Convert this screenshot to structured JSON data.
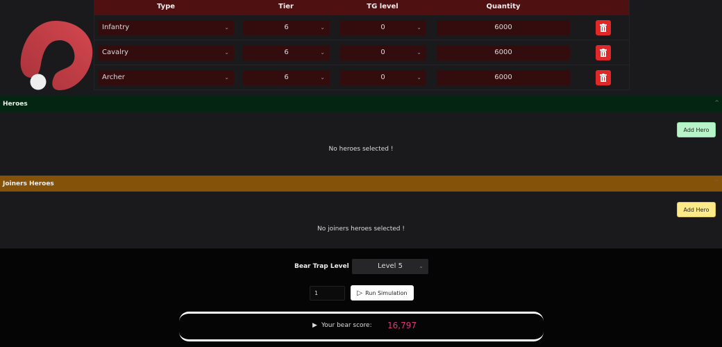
{
  "troops": {
    "headers": [
      "Type",
      "Tier",
      "TG level",
      "Quantity"
    ],
    "rows": [
      {
        "type": "Infantry",
        "tier": "6",
        "tg": "0",
        "quantity": "6000"
      },
      {
        "type": "Cavalry",
        "tier": "6",
        "tg": "0",
        "quantity": "6000"
      },
      {
        "type": "Archer",
        "tier": "6",
        "tg": "0",
        "quantity": "6000"
      }
    ]
  },
  "heroes": {
    "title": "Heroes",
    "add_label": "Add Hero",
    "empty": "No heroes selected !"
  },
  "joiners": {
    "title": "Joiners Heroes",
    "add_label": "Add Hero",
    "empty": "No joiners heroes selected !"
  },
  "bear_trap": {
    "label": "Bear Trap Level",
    "value": "Level 5"
  },
  "simulation": {
    "count": "1",
    "run_label": "Run Simulation"
  },
  "score": {
    "label": "Your bear score:",
    "value": "16,797"
  },
  "colors": {
    "header": "#4f1012",
    "heroes_bar": "#032512",
    "joiners_bar": "#845208",
    "delete": "#e02828",
    "score": "#e0357a",
    "add_hero": "#b7f5c9",
    "add_joiner": "#fdeb8a"
  }
}
